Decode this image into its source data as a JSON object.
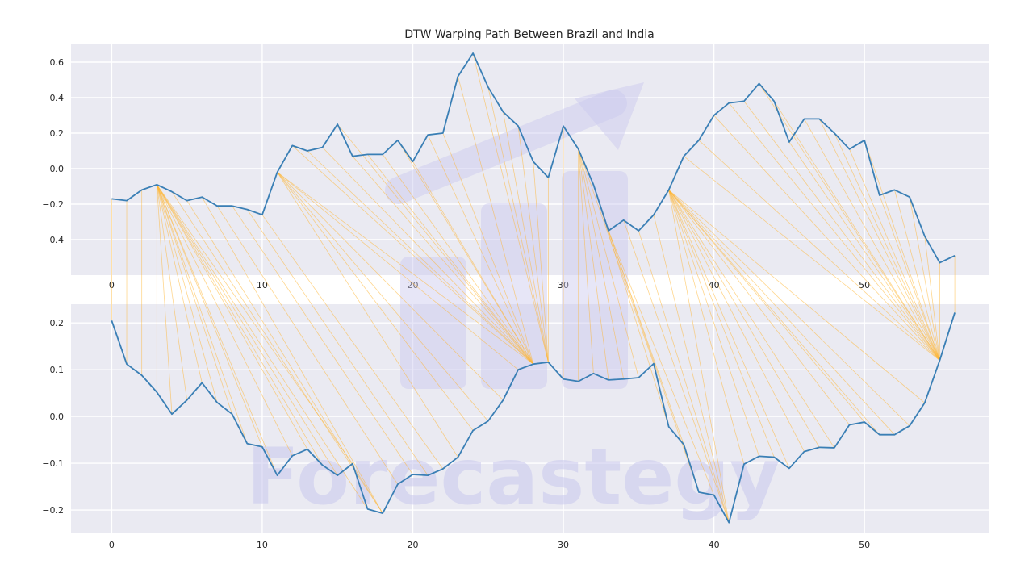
{
  "chart_data": {
    "type": "line",
    "title": "DTW Warping Path Between Brazil and India",
    "watermark": "Forecastegy",
    "panels": [
      {
        "name": "Brazil",
        "ylim": [
          -0.6,
          0.7
        ],
        "xlim": [
          -2.7,
          58.3
        ],
        "yticks": [
          -0.4,
          -0.2,
          0.0,
          0.2,
          0.4,
          0.6
        ],
        "ytick_labels": [
          "−0.4",
          "−0.2",
          "0.0",
          "0.2",
          "0.4",
          "0.6"
        ],
        "xticks": [
          0,
          10,
          20,
          30,
          40,
          50
        ],
        "xtick_labels": [
          "0",
          "10",
          "20",
          "30",
          "40",
          "50"
        ],
        "values": [
          -0.17,
          -0.18,
          -0.12,
          -0.09,
          -0.13,
          -0.18,
          -0.16,
          -0.21,
          -0.21,
          -0.23,
          -0.26,
          -0.02,
          0.13,
          0.1,
          0.12,
          0.25,
          0.07,
          0.08,
          0.08,
          0.16,
          0.04,
          0.19,
          0.2,
          0.52,
          0.65,
          0.46,
          0.32,
          0.24,
          0.04,
          -0.05,
          0.24,
          0.11,
          -0.09,
          -0.35,
          -0.29,
          -0.35,
          -0.26,
          -0.12,
          0.07,
          0.16,
          0.3,
          0.37,
          0.38,
          0.48,
          0.38,
          0.15,
          0.28,
          0.28,
          0.2,
          0.11,
          0.16,
          -0.15,
          -0.12,
          -0.16,
          -0.38,
          -0.53,
          -0.49
        ]
      },
      {
        "name": "India",
        "ylim": [
          -0.25,
          0.24
        ],
        "xlim": [
          -2.7,
          58.3
        ],
        "yticks": [
          -0.2,
          -0.1,
          0.0,
          0.1,
          0.2
        ],
        "ytick_labels": [
          "−0.2",
          "−0.1",
          "0.0",
          "0.1",
          "0.2"
        ],
        "xticks": [
          0,
          10,
          20,
          30,
          40,
          50
        ],
        "xtick_labels": [
          "0",
          "10",
          "20",
          "30",
          "40",
          "50"
        ],
        "values": [
          0.205,
          0.112,
          0.088,
          0.052,
          0.005,
          0.035,
          0.072,
          0.03,
          0.005,
          -0.058,
          -0.065,
          -0.126,
          -0.084,
          -0.07,
          -0.104,
          -0.126,
          -0.101,
          -0.198,
          -0.207,
          -0.145,
          -0.124,
          -0.126,
          -0.112,
          -0.087,
          -0.03,
          -0.01,
          0.035,
          0.1,
          0.112,
          0.116,
          0.08,
          0.075,
          0.092,
          0.078,
          0.08,
          0.083,
          0.113,
          -0.022,
          -0.06,
          -0.162,
          -0.168,
          -0.227,
          -0.102,
          -0.085,
          -0.087,
          -0.111,
          -0.075,
          -0.066,
          -0.067,
          -0.018,
          -0.012,
          -0.039,
          -0.039,
          -0.02,
          0.029,
          0.12,
          0.222
        ]
      }
    ],
    "warping_path": [
      [
        0,
        0
      ],
      [
        1,
        1
      ],
      [
        2,
        2
      ],
      [
        3,
        3
      ],
      [
        3,
        4
      ],
      [
        3,
        5
      ],
      [
        3,
        6
      ],
      [
        3,
        7
      ],
      [
        3,
        8
      ],
      [
        3,
        9
      ],
      [
        3,
        10
      ],
      [
        3,
        11
      ],
      [
        3,
        12
      ],
      [
        3,
        13
      ],
      [
        3,
        14
      ],
      [
        3,
        15
      ],
      [
        3,
        16
      ],
      [
        3,
        17
      ],
      [
        4,
        18
      ],
      [
        5,
        18
      ],
      [
        6,
        18
      ],
      [
        7,
        19
      ],
      [
        8,
        20
      ],
      [
        9,
        21
      ],
      [
        10,
        22
      ],
      [
        11,
        23
      ],
      [
        11,
        24
      ],
      [
        11,
        25
      ],
      [
        11,
        26
      ],
      [
        11,
        27
      ],
      [
        11,
        28
      ],
      [
        12,
        28
      ],
      [
        13,
        28
      ],
      [
        14,
        28
      ],
      [
        15,
        28
      ],
      [
        16,
        28
      ],
      [
        17,
        28
      ],
      [
        18,
        28
      ],
      [
        19,
        28
      ],
      [
        20,
        28
      ],
      [
        21,
        28
      ],
      [
        22,
        28
      ],
      [
        23,
        28
      ],
      [
        24,
        29
      ],
      [
        25,
        29
      ],
      [
        26,
        29
      ],
      [
        27,
        29
      ],
      [
        28,
        29
      ],
      [
        29,
        29
      ],
      [
        30,
        30
      ],
      [
        31,
        31
      ],
      [
        31,
        32
      ],
      [
        31,
        33
      ],
      [
        31,
        34
      ],
      [
        31,
        35
      ],
      [
        31,
        36
      ],
      [
        32,
        37
      ],
      [
        33,
        38
      ],
      [
        33,
        39
      ],
      [
        33,
        40
      ],
      [
        34,
        41
      ],
      [
        35,
        41
      ],
      [
        36,
        41
      ],
      [
        37,
        41
      ],
      [
        37,
        42
      ],
      [
        37,
        43
      ],
      [
        37,
        44
      ],
      [
        37,
        45
      ],
      [
        37,
        46
      ],
      [
        37,
        47
      ],
      [
        37,
        48
      ],
      [
        37,
        49
      ],
      [
        37,
        50
      ],
      [
        37,
        51
      ],
      [
        37,
        52
      ],
      [
        37,
        53
      ],
      [
        37,
        54
      ],
      [
        38,
        55
      ],
      [
        39,
        55
      ],
      [
        40,
        55
      ],
      [
        41,
        55
      ],
      [
        42,
        55
      ],
      [
        43,
        55
      ],
      [
        44,
        55
      ],
      [
        45,
        55
      ],
      [
        46,
        55
      ],
      [
        47,
        55
      ],
      [
        48,
        55
      ],
      [
        49,
        55
      ],
      [
        50,
        55
      ],
      [
        51,
        55
      ],
      [
        52,
        55
      ],
      [
        53,
        55
      ],
      [
        54,
        55
      ],
      [
        55,
        55
      ],
      [
        56,
        56
      ]
    ],
    "colors": {
      "series": "#3a7fb5",
      "warping": "#ffb531",
      "panel_background": "#eaeaf2",
      "grid": "#ffffff",
      "watermark": "#c9c8ee"
    },
    "grid": true
  }
}
